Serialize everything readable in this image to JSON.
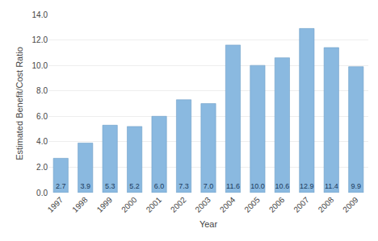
{
  "chart_data": {
    "type": "bar",
    "categories": [
      "1997",
      "1998",
      "1999",
      "2000",
      "2001",
      "2002",
      "2003",
      "2004",
      "2005",
      "2006",
      "2007",
      "2008",
      "2009"
    ],
    "values": [
      2.7,
      3.9,
      5.3,
      5.2,
      6.0,
      7.3,
      7.0,
      11.6,
      10.0,
      10.6,
      12.9,
      11.4,
      9.9
    ],
    "value_labels": [
      "2.7",
      "3.9",
      "5.3",
      "5.2",
      "6.0",
      "7.3",
      "7.0",
      "11.6",
      "10.0",
      "10.6",
      "12.9",
      "11.4",
      "9.9"
    ],
    "data_labels": true,
    "color": "#8ab9e0",
    "xlabel": "Year",
    "ylabel": "Estimated Benefit/Cost Ratio",
    "ylim": [
      0,
      14.0
    ],
    "yticks": [
      {
        "value": 0,
        "label": "0.0"
      },
      {
        "value": 2,
        "label": "2.0"
      },
      {
        "value": 4,
        "label": "4.0"
      },
      {
        "value": 6,
        "label": "6.0"
      },
      {
        "value": 8,
        "label": "8.0"
      },
      {
        "value": 10,
        "label": "10.0"
      },
      {
        "value": 12,
        "label": "12.0"
      },
      {
        "value": 14,
        "label": "14.0"
      }
    ],
    "grid": true
  }
}
